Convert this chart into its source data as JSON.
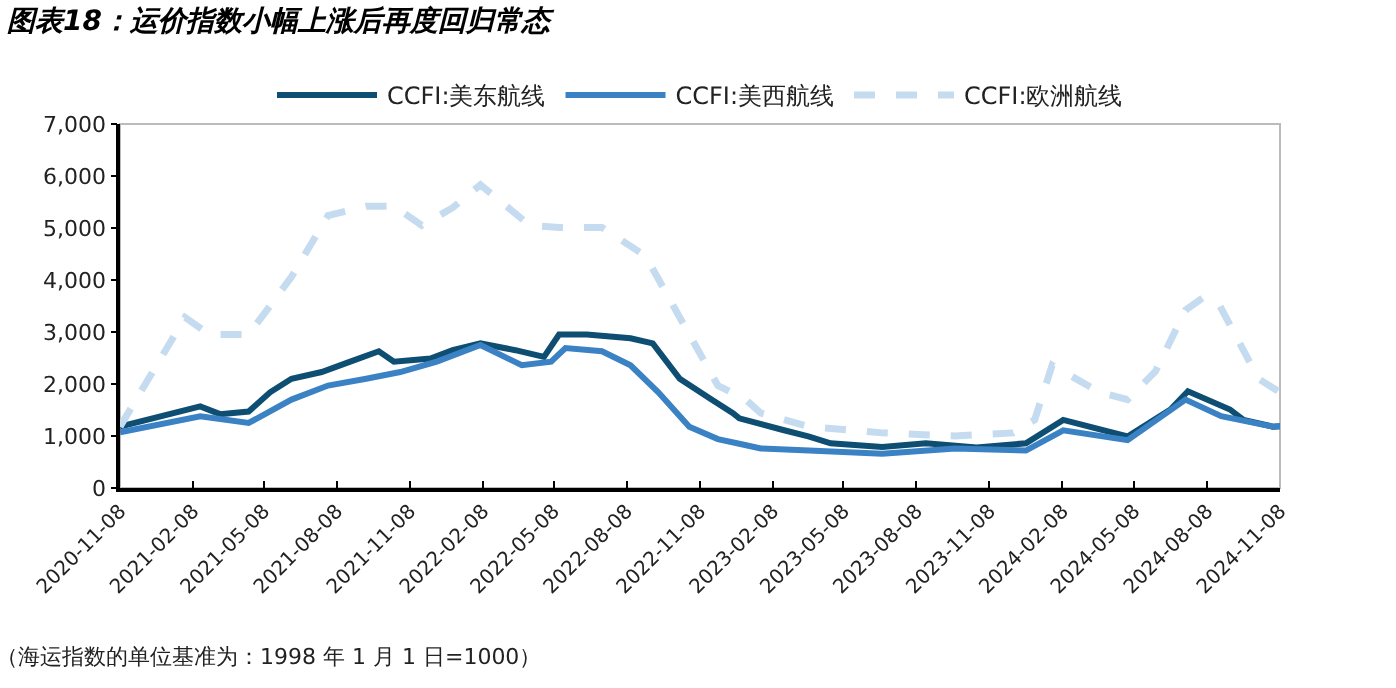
{
  "chart_data": {
    "type": "line",
    "title": "图表18：运价指数小幅上涨后再度回归常态",
    "annotations": [
      "（海运指数的单位基准为：1998 年 1 月 1 日=1000）"
    ],
    "xlim": [
      "2020-11-08",
      "2024-11-08"
    ],
    "xticks": [
      "2020-11-08",
      "2021-02-08",
      "2021-05-08",
      "2021-08-08",
      "2021-11-08",
      "2022-02-08",
      "2022-05-08",
      "2022-08-08",
      "2022-11-08",
      "2023-02-08",
      "2023-05-08",
      "2023-08-08",
      "2023-11-08",
      "2024-02-08",
      "2024-05-08",
      "2024-08-08",
      "2024-11-08"
    ],
    "ylim": [
      0,
      7000
    ],
    "yticks": [
      {
        "value": 0,
        "label": "0"
      },
      {
        "value": 1000,
        "label": "1,000"
      },
      {
        "value": 2000,
        "label": "2,000"
      },
      {
        "value": 3000,
        "label": "3,000"
      },
      {
        "value": 4000,
        "label": "4,000"
      },
      {
        "value": 5000,
        "label": "5,000"
      },
      {
        "value": 6000,
        "label": "6,000"
      },
      {
        "value": 7000,
        "label": "7,000"
      }
    ],
    "grid": false,
    "legend": "top",
    "series": [
      {
        "name": "CCFI:美东航线",
        "color": "#0d4e72",
        "line_style": "solid",
        "x": [
          "2020-11-08",
          "2021-02-17",
          "2021-03-14",
          "2021-04-19",
          "2021-05-16",
          "2021-06-12",
          "2021-07-20",
          "2021-08-25",
          "2021-09-30",
          "2021-10-19",
          "2021-12-04",
          "2022-01-01",
          "2022-02-05",
          "2022-03-21",
          "2022-04-26",
          "2022-05-15",
          "2022-06-19",
          "2022-08-13",
          "2022-09-10",
          "2022-10-14",
          "2022-11-23",
          "2022-12-20",
          "2022-12-28",
          "2023-02-20",
          "2023-03-26",
          "2023-04-22",
          "2023-06-26",
          "2023-08-20",
          "2023-10-23",
          "2023-12-24",
          "2024-02-09",
          "2024-04-30",
          "2024-06-23",
          "2024-07-15",
          "2024-09-06",
          "2024-09-23",
          "2024-10-30",
          "2024-11-08"
        ],
        "values": [
          1180,
          1570,
          1420,
          1470,
          1840,
          2100,
          2230,
          2430,
          2630,
          2430,
          2490,
          2650,
          2780,
          2650,
          2520,
          2950,
          2950,
          2880,
          2780,
          2100,
          1700,
          1440,
          1340,
          1120,
          990,
          860,
          790,
          860,
          780,
          860,
          1310,
          990,
          1510,
          1860,
          1510,
          1310,
          1180,
          1190
        ]
      },
      {
        "name": "CCFI:美西航线",
        "color": "#3a82c4",
        "line_style": "solid",
        "x": [
          "2020-11-08",
          "2021-02-17",
          "2021-04-19",
          "2021-06-12",
          "2021-07-28",
          "2021-09-14",
          "2021-10-27",
          "2021-12-12",
          "2022-02-05",
          "2022-03-29",
          "2022-05-05",
          "2022-05-23",
          "2022-07-08",
          "2022-08-13",
          "2022-09-17",
          "2022-10-26",
          "2022-12-01",
          "2022-12-28",
          "2023-01-24",
          "2023-03-26",
          "2023-06-26",
          "2023-09-26",
          "2023-12-24",
          "2024-02-09",
          "2024-04-30",
          "2024-07-12",
          "2024-08-26",
          "2024-10-30",
          "2024-11-08"
        ],
        "values": [
          1070,
          1380,
          1250,
          1700,
          1970,
          2100,
          2230,
          2430,
          2750,
          2360,
          2430,
          2690,
          2630,
          2360,
          1840,
          1180,
          940,
          850,
          760,
          720,
          660,
          760,
          720,
          1110,
          920,
          1700,
          1380,
          1180,
          1190
        ]
      },
      {
        "name": "CCFI:欧洲航线",
        "color": "#c5dcf0",
        "line_style": "dashed",
        "x": [
          "2020-11-08",
          "2021-01-29",
          "2021-03-01",
          "2021-04-19",
          "2021-06-12",
          "2021-07-28",
          "2021-09-14",
          "2021-10-19",
          "2021-11-23",
          "2022-01-01",
          "2022-02-05",
          "2022-04-08",
          "2022-05-15",
          "2022-07-08",
          "2022-09-01",
          "2022-10-14",
          "2022-12-01",
          "2023-01-05",
          "2023-01-24",
          "2023-03-26",
          "2023-06-26",
          "2023-09-26",
          "2023-12-08",
          "2024-01-04",
          "2024-01-26",
          "2024-03-26",
          "2024-04-30",
          "2024-06-04",
          "2024-07-12",
          "2024-08-04",
          "2024-08-23",
          "2024-10-12",
          "2024-11-08"
        ],
        "values": [
          1180,
          3280,
          2950,
          2950,
          4060,
          5240,
          5420,
          5420,
          5050,
          5390,
          5830,
          5050,
          5010,
          5010,
          4460,
          3280,
          1970,
          1700,
          1440,
          1180,
          1060,
          1000,
          1060,
          1310,
          2360,
          1840,
          1700,
          2240,
          3420,
          3670,
          3540,
          2100,
          1840
        ]
      }
    ]
  }
}
